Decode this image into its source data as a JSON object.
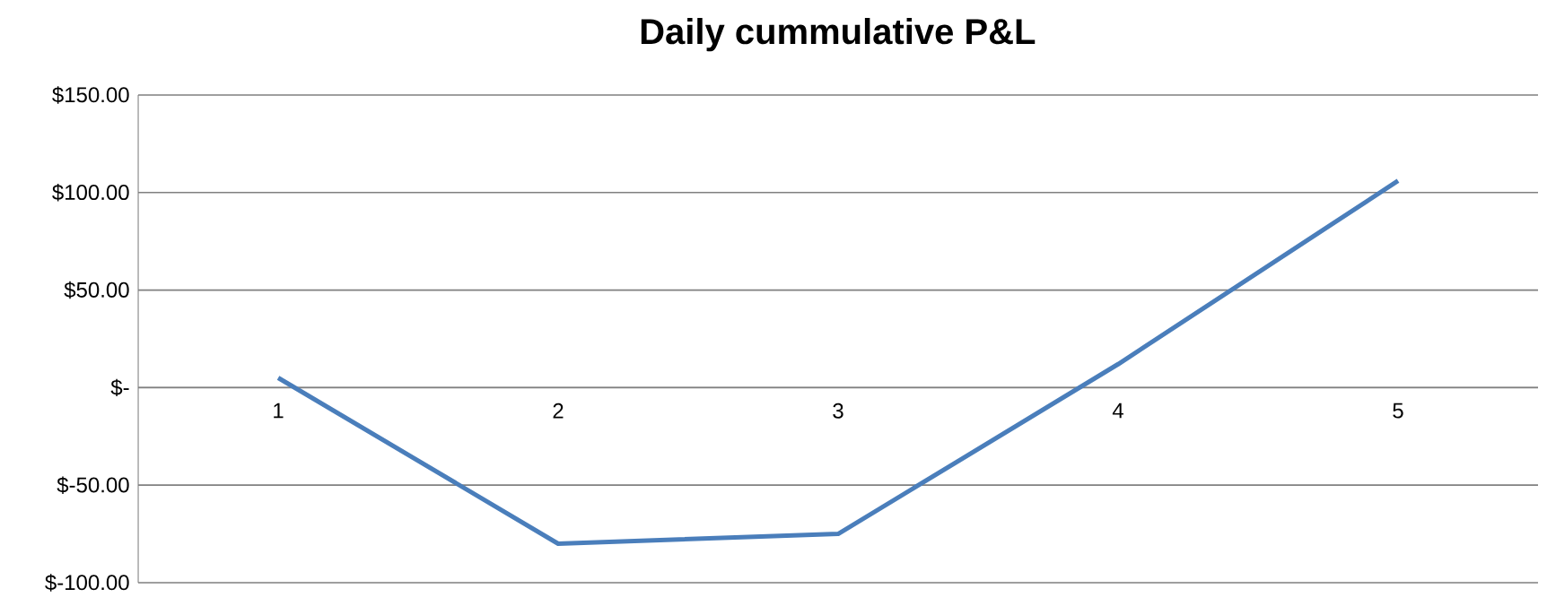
{
  "chart_data": {
    "type": "line",
    "title": "Daily cummulative P&L",
    "categories": [
      "1",
      "2",
      "3",
      "4",
      "5"
    ],
    "series": [
      {
        "color": "#4a7ebb",
        "values": [
          5,
          -80,
          -75,
          12,
          106
        ]
      }
    ],
    "ylim": [
      -100,
      150
    ],
    "yticks": [
      {
        "value": -100,
        "label": "$-100.00"
      },
      {
        "value": -50,
        "label": "$-50.00"
      },
      {
        "value": 0,
        "label": "$-"
      },
      {
        "value": 50,
        "label": "$50.00"
      },
      {
        "value": 100,
        "label": "$100.00"
      },
      {
        "value": 150,
        "label": "$150.00"
      }
    ],
    "grid": "y",
    "marker": "none",
    "line_style": "solid"
  }
}
